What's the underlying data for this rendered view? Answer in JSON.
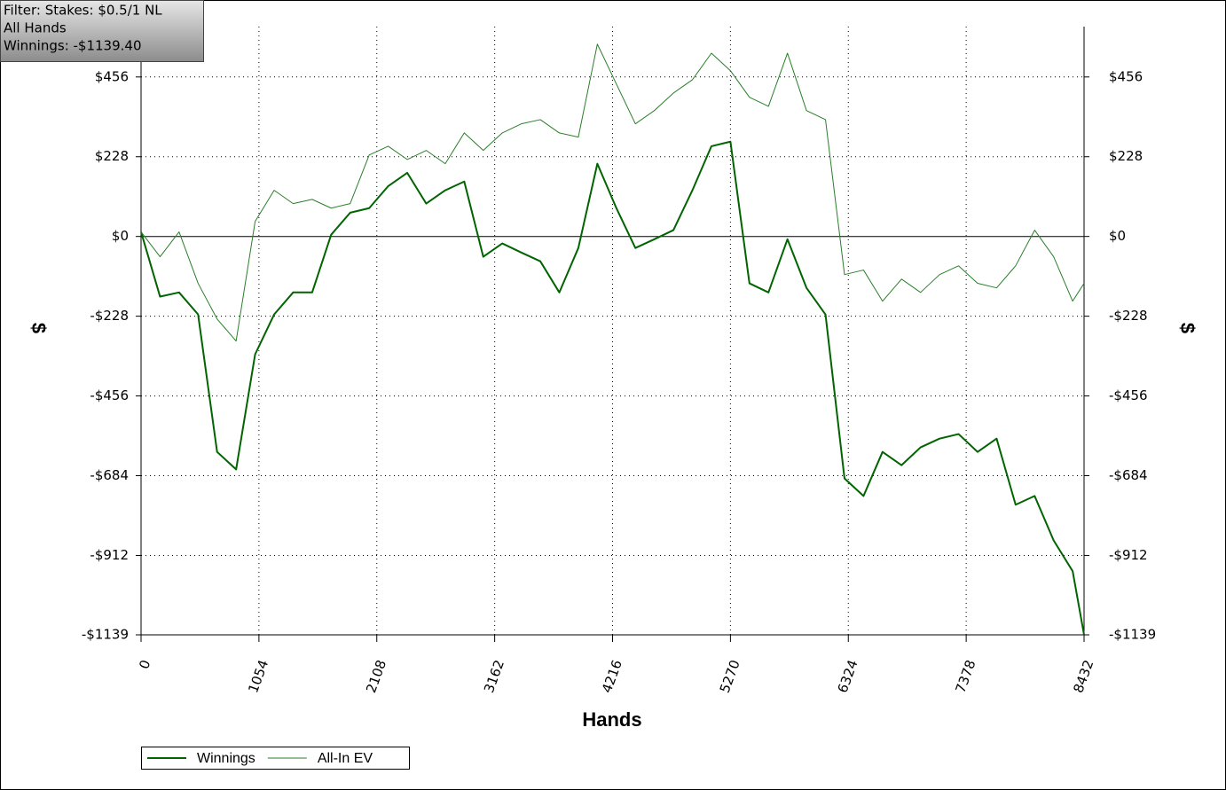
{
  "chart_data": {
    "type": "line",
    "annotations": [
      "Filter: Stakes: $0.5/1 NL",
      "All Hands",
      "Winnings: -$1139.40"
    ],
    "x_label": "Hands",
    "y_label": "$",
    "x": [
      0,
      170,
      340,
      510,
      680,
      850,
      1020,
      1190,
      1360,
      1530,
      1700,
      1870,
      2040,
      2210,
      2380,
      2550,
      2720,
      2890,
      3060,
      3230,
      3400,
      3570,
      3740,
      3910,
      4080,
      4250,
      4420,
      4590,
      4760,
      4930,
      5100,
      5270,
      5440,
      5610,
      5780,
      5950,
      6120,
      6290,
      6460,
      6630,
      6800,
      6970,
      7140,
      7310,
      7480,
      7650,
      7820,
      7990,
      8160,
      8330,
      8432
    ],
    "series": [
      {
        "name": "Winnings",
        "color": "#006400",
        "values": [
          13,
          -172,
          -160,
          -223,
          -616,
          -666,
          -337,
          -223,
          -160,
          -160,
          5,
          68,
          81,
          144,
          182,
          94,
          132,
          157,
          -58,
          -20,
          -46,
          -71,
          -160,
          -33,
          208,
          81,
          -33,
          -8,
          18,
          132,
          258,
          271,
          -134,
          -160,
          -8,
          -147,
          -223,
          -692,
          -742,
          -616,
          -654,
          -603,
          -578,
          -565,
          -616,
          -578,
          -767,
          -742,
          -869,
          -957,
          -1139
        ]
      },
      {
        "name": "All-In EV",
        "color": "#2a7f2a",
        "values": [
          13,
          -58,
          13,
          -134,
          -236,
          -299,
          43,
          132,
          94,
          106,
          81,
          94,
          233,
          258,
          220,
          246,
          208,
          296,
          246,
          296,
          322,
          334,
          296,
          284,
          550,
          436,
          322,
          360,
          410,
          448,
          524,
          474,
          398,
          372,
          524,
          360,
          334,
          -109,
          -96,
          -185,
          -122,
          -160,
          -109,
          -84,
          -134,
          -147,
          -84,
          18,
          -58,
          -185,
          -134
        ]
      }
    ],
    "xlim": [
      0,
      8432
    ],
    "xticks": [
      0,
      1054,
      2108,
      3162,
      4216,
      5270,
      6324,
      7378,
      8432
    ],
    "ylim": [
      -1139,
      600
    ],
    "yticks": [
      {
        "value": 456,
        "label": "$456"
      },
      {
        "value": 228,
        "label": "$228"
      },
      {
        "value": 0,
        "label": "$0"
      },
      {
        "value": -228,
        "label": "-$228"
      },
      {
        "value": -456,
        "label": "-$456"
      },
      {
        "value": -684,
        "label": "-$684"
      },
      {
        "value": -912,
        "label": "-$912"
      },
      {
        "value": -1139,
        "label": "-$1139"
      }
    ],
    "grid": true
  }
}
